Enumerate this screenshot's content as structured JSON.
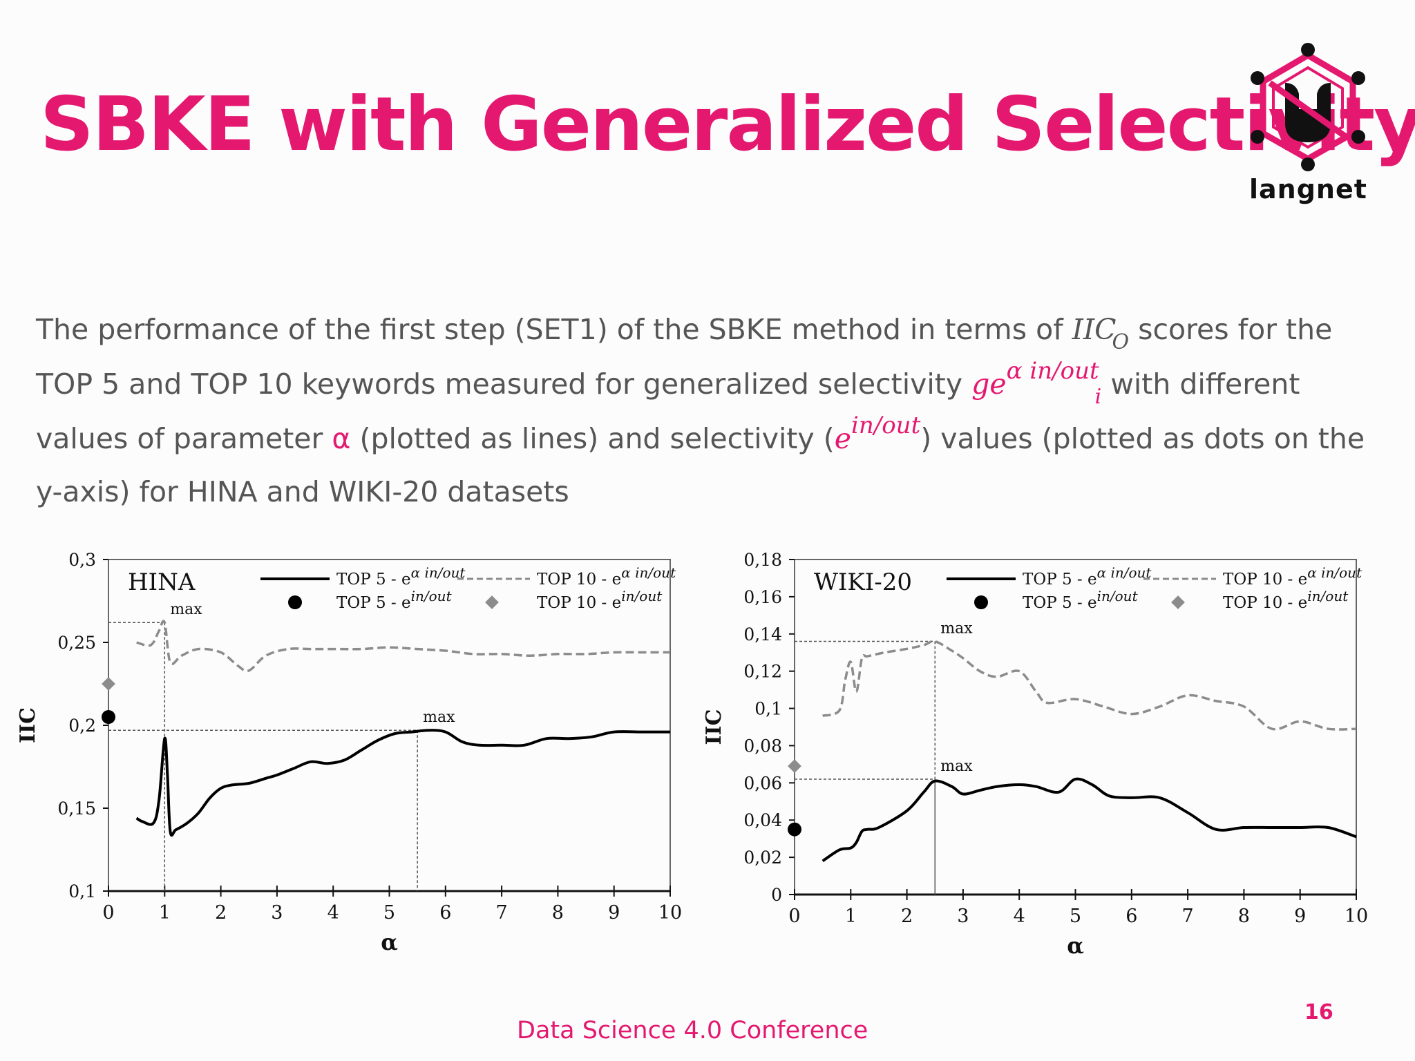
{
  "slide": {
    "title": "SBKE with Generalized Selectivity",
    "logo_text": "langnet",
    "description": {
      "part1": "The performance of the first step (SET1) of the SBKE method in terms of ",
      "iic": "IIC",
      "iic_sub": "O",
      "part2": " scores for the TOP 5 and TOP 10 keywords measured for generalized selectivity ",
      "ge": "ge",
      "ge_sup": "α in/out",
      "ge_sub": "i",
      "part3": " with different values of parameter ",
      "alpha": "α",
      "part4": " (plotted as lines) and selectivity (",
      "e": "e",
      "e_sup": "in/out",
      "part5": ") values (plotted as dots on the y-axis) for HINA and WIKI-20 datasets"
    },
    "footer": "Data Science 4.0  Conference",
    "page_number": "16"
  },
  "legend": {
    "top5_line": "TOP 5 - e",
    "top5_line_sup": "α in/out",
    "top10_line": "TOP 10 - e",
    "top10_line_sup": "α in/out",
    "top5_dot": "TOP 5 - e",
    "top5_dot_sup": "in/out",
    "top10_dot": "TOP 10 - e",
    "top10_dot_sup": "in/out"
  },
  "colors": {
    "accent": "#e5186f",
    "top5": "#000000",
    "top10": "#8c8c8c"
  },
  "chart_data": [
    {
      "type": "line",
      "panel_label": "HINA",
      "xlabel": "α",
      "ylabel": "IIC",
      "xlim": [
        0,
        10
      ],
      "ylim": [
        0.1,
        0.3
      ],
      "xticks": [
        "0",
        "1",
        "2",
        "3",
        "4",
        "5",
        "6",
        "7",
        "8",
        "9",
        "10"
      ],
      "yticks": [
        "0,1",
        "0,15",
        "0,2",
        "0,25",
        "0,3"
      ],
      "ytick_values": [
        0.1,
        0.15,
        0.2,
        0.25,
        0.3
      ],
      "legend": "top-right",
      "series": [
        {
          "name": "TOP 5 - e α in/out",
          "style": "solid",
          "x": [
            0.5,
            0.6,
            0.8,
            0.9,
            1.0,
            1.05,
            1.1,
            1.2,
            1.4,
            1.6,
            1.8,
            2.0,
            2.2,
            2.5,
            2.8,
            3.0,
            3.3,
            3.6,
            3.9,
            4.2,
            4.5,
            4.8,
            5.1,
            5.4,
            5.7,
            6.0,
            6.3,
            6.6,
            7.0,
            7.4,
            7.8,
            8.2,
            8.6,
            9.0,
            9.5,
            10.0
          ],
          "y": [
            0.144,
            0.142,
            0.141,
            0.155,
            0.192,
            0.17,
            0.136,
            0.137,
            0.141,
            0.147,
            0.156,
            0.162,
            0.164,
            0.165,
            0.168,
            0.17,
            0.174,
            0.178,
            0.177,
            0.179,
            0.185,
            0.191,
            0.195,
            0.196,
            0.197,
            0.196,
            0.19,
            0.188,
            0.188,
            0.188,
            0.192,
            0.192,
            0.193,
            0.196,
            0.196,
            0.196
          ]
        },
        {
          "name": "TOP 10 - e α in/out",
          "style": "dashed",
          "x": [
            0.5,
            0.7,
            0.8,
            0.9,
            1.0,
            1.1,
            1.3,
            1.6,
            2.0,
            2.3,
            2.5,
            2.8,
            3.2,
            3.6,
            4.0,
            4.5,
            5.0,
            5.5,
            6.0,
            6.5,
            7.0,
            7.5,
            8.0,
            8.5,
            9.0,
            9.5,
            10.0
          ],
          "y": [
            0.25,
            0.248,
            0.25,
            0.257,
            0.262,
            0.238,
            0.242,
            0.246,
            0.244,
            0.236,
            0.233,
            0.242,
            0.246,
            0.246,
            0.246,
            0.246,
            0.247,
            0.246,
            0.245,
            0.243,
            0.243,
            0.242,
            0.243,
            0.243,
            0.244,
            0.244,
            0.244
          ]
        }
      ],
      "points": [
        {
          "name": "TOP 5 - e in/out",
          "x": 0,
          "y": 0.205
        },
        {
          "name": "TOP 10 - e in/out",
          "x": 0,
          "y": 0.225
        }
      ],
      "annotations": [
        {
          "text": "max",
          "x": 1.0,
          "y": 0.262
        },
        {
          "text": "max",
          "x": 5.5,
          "y": 0.197
        }
      ]
    },
    {
      "type": "line",
      "panel_label": "WIKI-20",
      "xlabel": "α",
      "ylabel": "IIC",
      "xlim": [
        0,
        10
      ],
      "ylim": [
        0,
        0.18
      ],
      "xticks": [
        "0",
        "1",
        "2",
        "3",
        "4",
        "5",
        "6",
        "7",
        "8",
        "9",
        "10"
      ],
      "yticks": [
        "0",
        "0,02",
        "0,04",
        "0,06",
        "0,08",
        "0,1",
        "0,12",
        "0,14",
        "0,16",
        "0,18"
      ],
      "ytick_values": [
        0,
        0.02,
        0.04,
        0.06,
        0.08,
        0.1,
        0.12,
        0.14,
        0.16,
        0.18
      ],
      "legend": "top-right",
      "series": [
        {
          "name": "TOP 5 - e α in/out",
          "style": "solid",
          "x": [
            0.5,
            0.8,
            1.0,
            1.1,
            1.2,
            1.3,
            1.5,
            2.0,
            2.3,
            2.5,
            2.8,
            3.0,
            3.3,
            3.6,
            4.0,
            4.3,
            4.7,
            5.0,
            5.3,
            5.6,
            6.0,
            6.5,
            7.0,
            7.5,
            8.0,
            8.5,
            9.0,
            9.5,
            10.0
          ],
          "y": [
            0.018,
            0.024,
            0.025,
            0.028,
            0.034,
            0.035,
            0.036,
            0.045,
            0.055,
            0.061,
            0.058,
            0.054,
            0.056,
            0.058,
            0.059,
            0.058,
            0.055,
            0.062,
            0.059,
            0.053,
            0.052,
            0.052,
            0.044,
            0.035,
            0.036,
            0.036,
            0.036,
            0.036,
            0.031
          ]
        },
        {
          "name": "TOP 10 - e α in/out",
          "style": "dashed",
          "x": [
            0.5,
            0.8,
            0.9,
            1.0,
            1.1,
            1.2,
            1.3,
            1.6,
            2.0,
            2.3,
            2.5,
            2.8,
            3.0,
            3.3,
            3.6,
            4.0,
            4.3,
            4.5,
            5.0,
            5.5,
            6.0,
            6.5,
            7.0,
            7.5,
            8.0,
            8.5,
            9.0,
            9.5,
            10.0
          ],
          "y": [
            0.096,
            0.099,
            0.115,
            0.125,
            0.109,
            0.127,
            0.128,
            0.13,
            0.132,
            0.134,
            0.136,
            0.131,
            0.127,
            0.12,
            0.117,
            0.12,
            0.109,
            0.103,
            0.105,
            0.101,
            0.097,
            0.101,
            0.107,
            0.104,
            0.101,
            0.089,
            0.093,
            0.089,
            0.089
          ]
        }
      ],
      "points": [
        {
          "name": "TOP 5 - e in/out",
          "x": 0,
          "y": 0.035
        },
        {
          "name": "TOP 10 - e in/out",
          "x": 0,
          "y": 0.069
        }
      ],
      "annotations": [
        {
          "text": "max",
          "x": 2.5,
          "y": 0.136
        },
        {
          "text": "max",
          "x": 2.5,
          "y": 0.062
        }
      ]
    }
  ]
}
